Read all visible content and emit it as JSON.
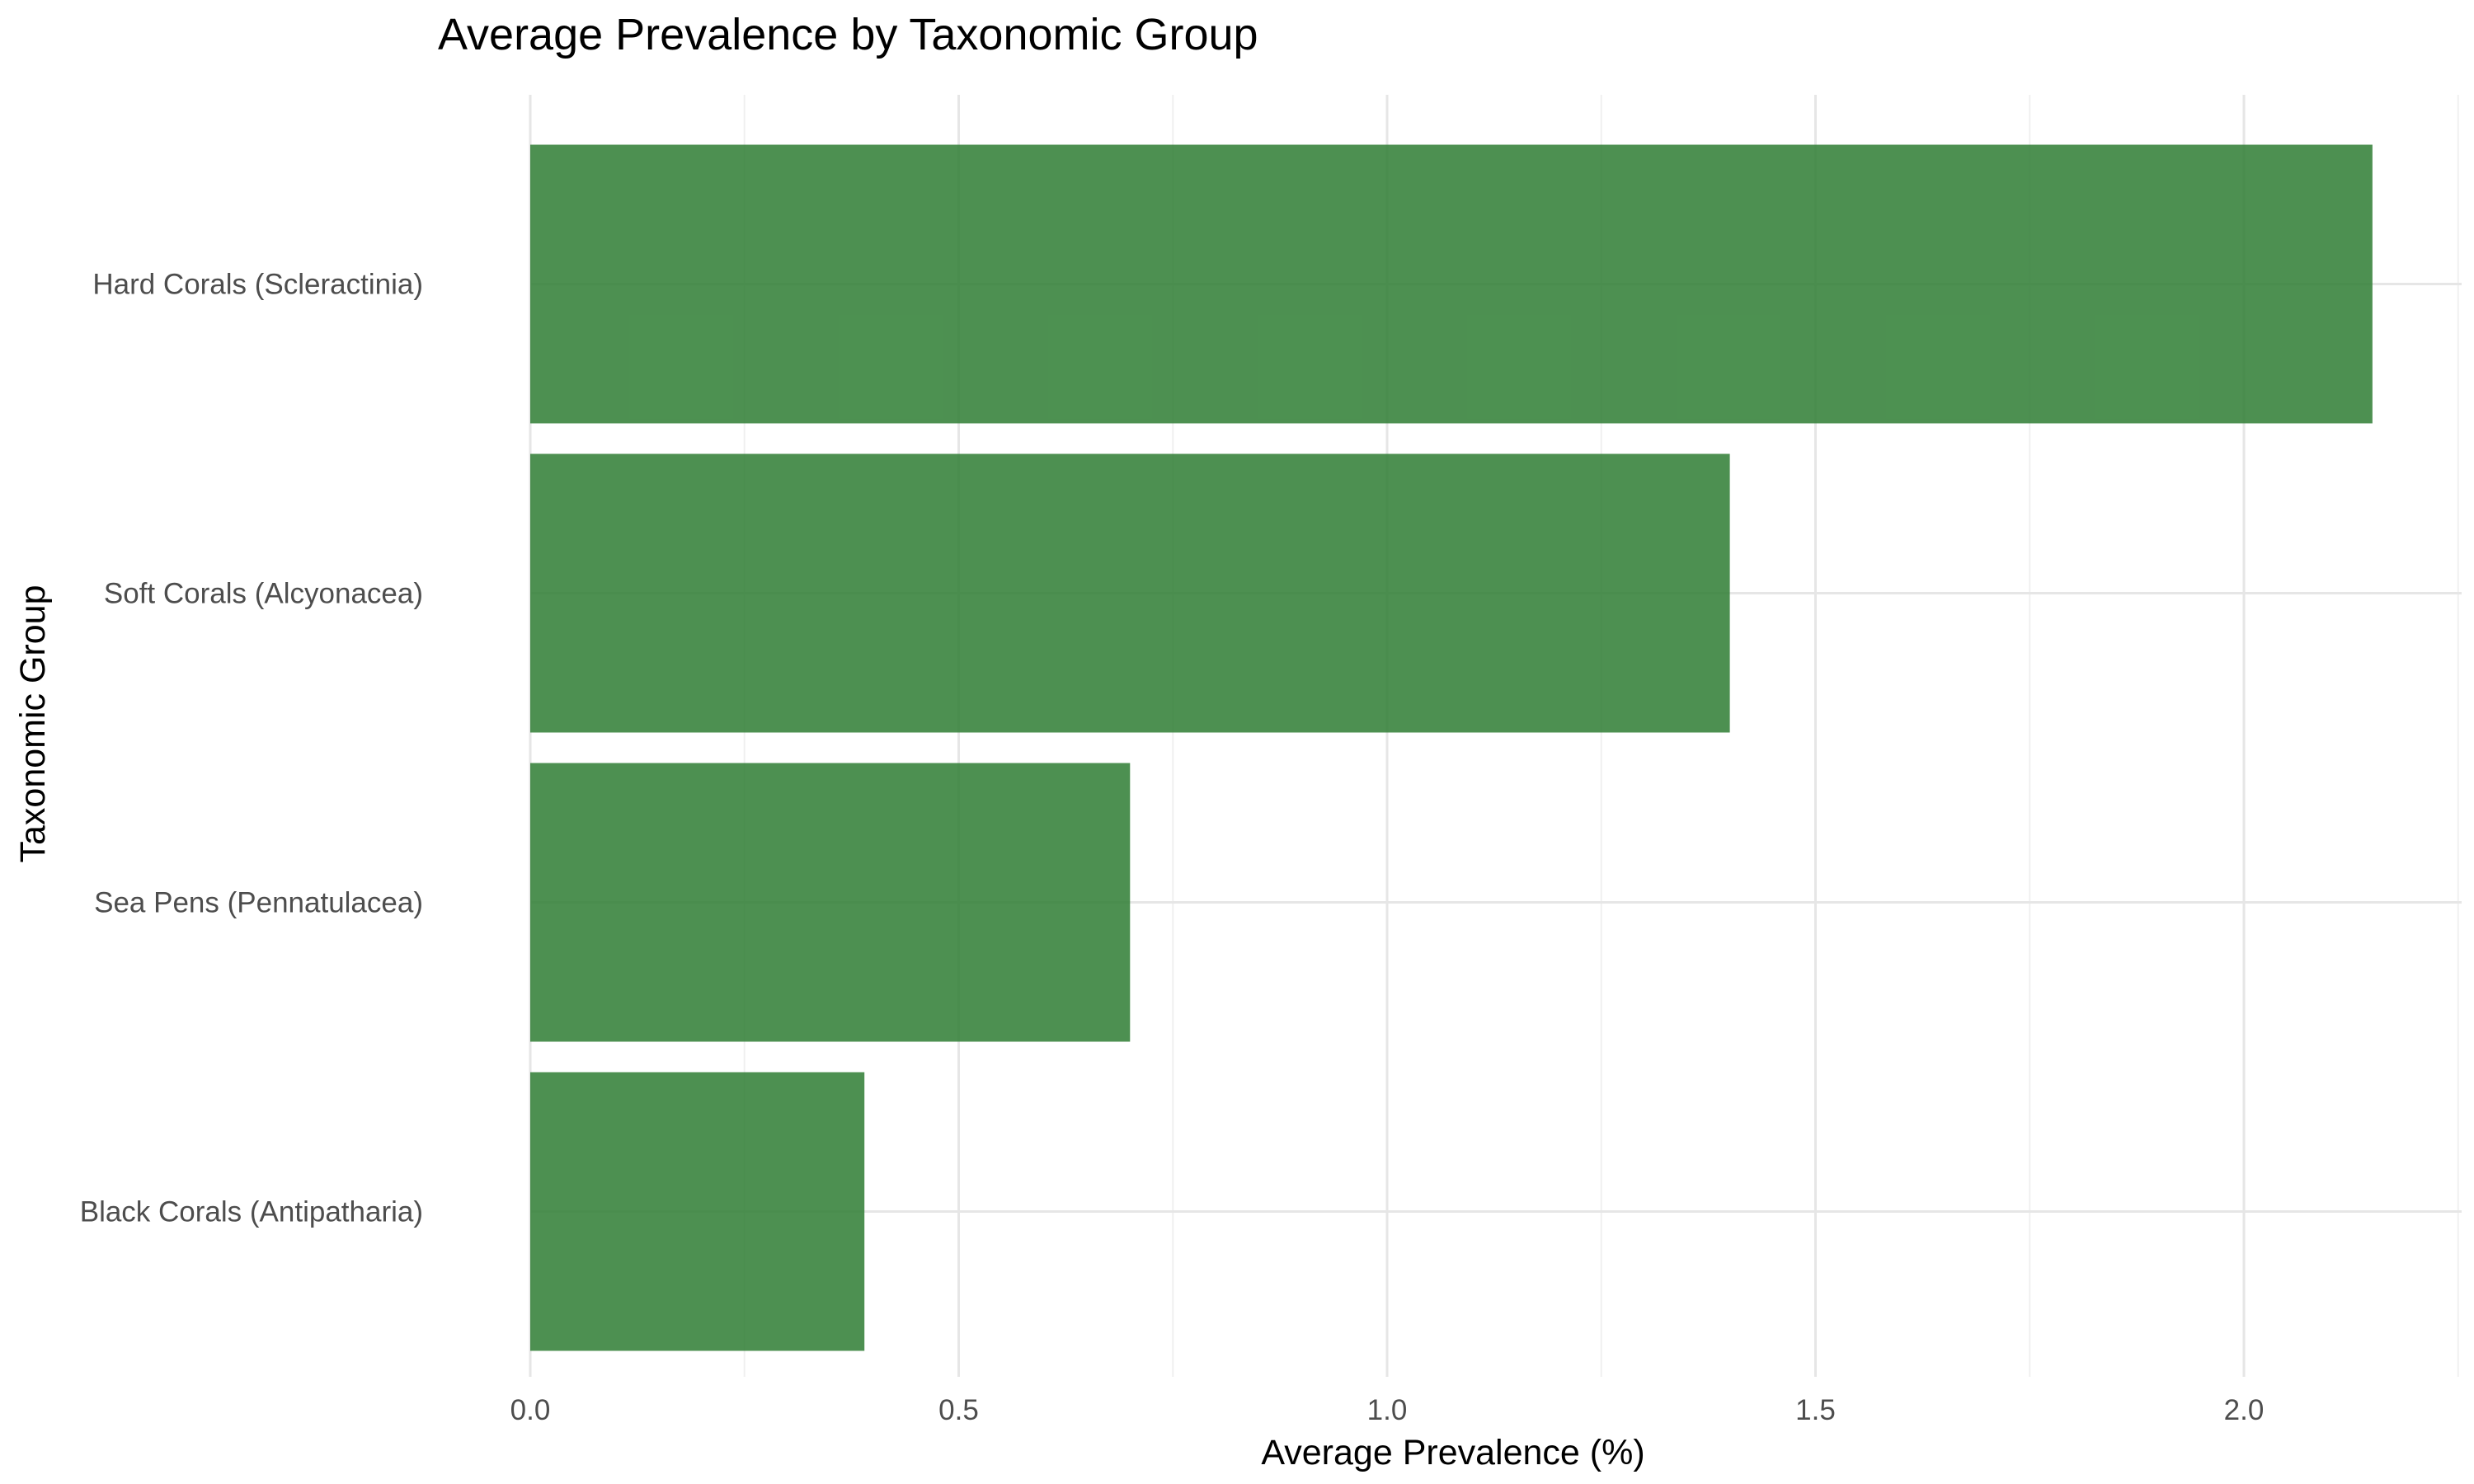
{
  "chart_data": {
    "type": "bar",
    "orientation": "horizontal",
    "title": "Average Prevalence by Taxonomic Group",
    "xlabel": "Average Prevalence (%)",
    "ylabel": "Taxonomic Group",
    "categories": [
      "Hard Corals (Scleractinia)",
      "Soft Corals (Alcyonacea)",
      "Sea Pens (Pennatulacea)",
      "Black Corals (Antipatharia)"
    ],
    "values": [
      2.15,
      1.4,
      0.7,
      0.39
    ],
    "xlim": [
      0,
      2.25
    ],
    "xticks": [
      "0.0",
      "0.5",
      "1.0",
      "1.5",
      "2.0"
    ],
    "bar_color": "#2E7D32",
    "bar_opacity": 0.85,
    "grid": true,
    "legend": "none"
  }
}
